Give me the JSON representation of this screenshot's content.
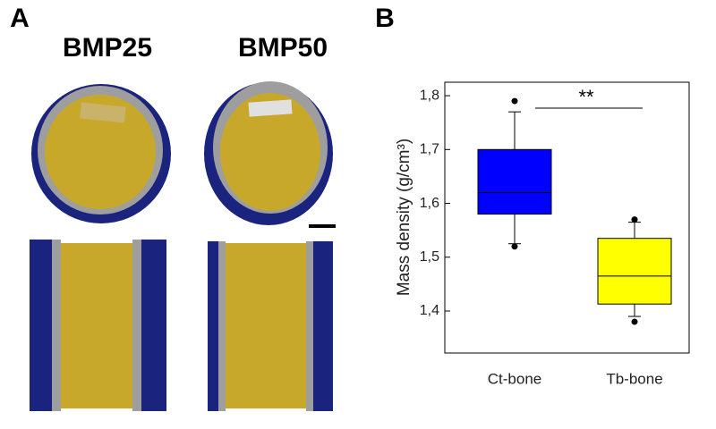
{
  "panel_labels": [
    "A",
    "B"
  ],
  "panel_a": {
    "labels": [
      "BMP25",
      "BMP50"
    ]
  },
  "chart_data": {
    "type": "box",
    "ylabel": "Mass density (g/cm³)",
    "categories": [
      "Ct-bone",
      "Tb-bone"
    ],
    "boxes": [
      {
        "color": "#0000ff",
        "whisker_low": 1.525,
        "q1": 1.58,
        "median": 1.62,
        "q3": 1.7,
        "whisker_high": 1.77,
        "outliers": [
          1.52,
          1.79
        ]
      },
      {
        "color": "#ffff00",
        "whisker_low": 1.39,
        "q1": 1.413,
        "median": 1.465,
        "q3": 1.535,
        "whisker_high": 1.565,
        "outliers": [
          1.38,
          1.57
        ]
      }
    ],
    "ylim": [
      1.322,
      1.825
    ],
    "yticks": [
      {
        "value": 1.4,
        "label": "1,4"
      },
      {
        "value": 1.5,
        "label": "1,5"
      },
      {
        "value": 1.6,
        "label": "1,6"
      },
      {
        "value": 1.7,
        "label": "1,7"
      },
      {
        "value": 1.8,
        "label": "1,8"
      }
    ],
    "annotation": "**"
  }
}
